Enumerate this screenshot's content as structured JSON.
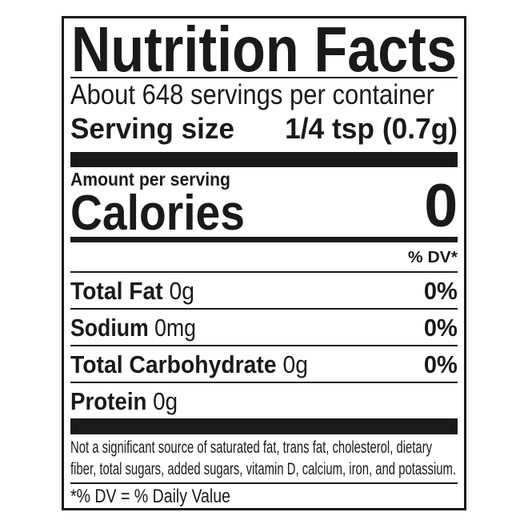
{
  "label": {
    "title": "Nutrition Facts",
    "servings_per_container": "About 648 servings per container",
    "serving_size_label": "Serving size",
    "serving_size_value": "1/4 tsp (0.7g)",
    "amount_per_serving": "Amount per serving",
    "calories_label": "Calories",
    "calories_value": "0",
    "dv_header": "% DV*",
    "nutrients": [
      {
        "name": "Total Fat",
        "amount": "0g",
        "dv": "0%"
      },
      {
        "name": "Sodium",
        "amount": "0mg",
        "dv": "0%"
      },
      {
        "name": "Total Carbohydrate",
        "amount": "0g",
        "dv": "0%"
      },
      {
        "name": "Protein",
        "amount": "0g",
        "dv": ""
      }
    ],
    "footnote_line1": "Not a significant source of saturated fat, trans fat, cholesterol, dietary",
    "footnote_line2": "fiber, total sugars, added sugars, vitamin D, calcium, iron, and potassium.",
    "dv_footnote": "*% DV = % Daily Value"
  }
}
